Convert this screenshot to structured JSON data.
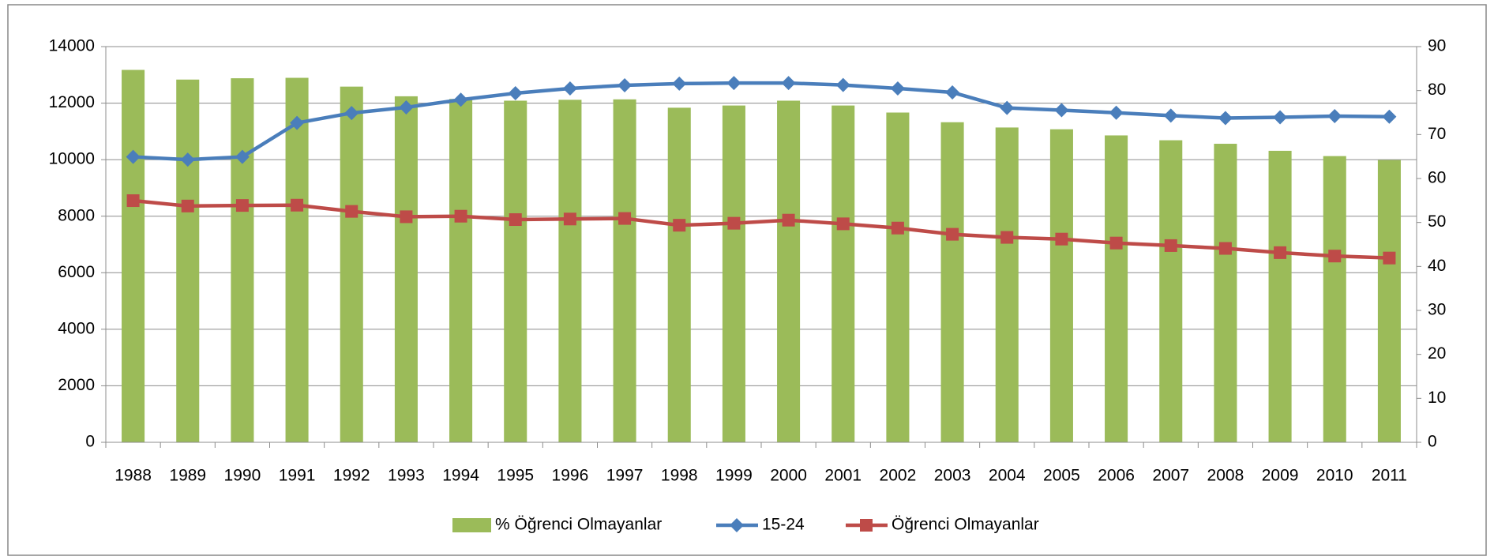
{
  "chart_data": {
    "type": "bar-line",
    "categories": [
      "1988",
      "1989",
      "1990",
      "1991",
      "1992",
      "1993",
      "1994",
      "1995",
      "1996",
      "1997",
      "1998",
      "1999",
      "2000",
      "2001",
      "2002",
      "2003",
      "2004",
      "2005",
      "2006",
      "2007",
      "2008",
      "2009",
      "2010",
      "2011"
    ],
    "series": [
      {
        "name": "% Öğrenci Olmayanlar",
        "type": "bar",
        "color": "#9bbb59",
        "axis": "y2",
        "values": [
          84.7,
          82.5,
          82.8,
          82.9,
          80.9,
          78.7,
          78.1,
          77.7,
          77.9,
          78.0,
          76.1,
          76.6,
          77.7,
          76.6,
          75.0,
          72.8,
          71.6,
          71.2,
          69.8,
          68.7,
          67.9,
          66.3,
          65.1,
          64.2
        ]
      },
      {
        "name": "15-24",
        "type": "line",
        "color": "#4a7ebb",
        "marker": "diamond",
        "values": [
          10100,
          10000,
          10100,
          11300,
          11650,
          11850,
          12120,
          12350,
          12520,
          12630,
          12690,
          12710,
          12710,
          12640,
          12520,
          12380,
          11830,
          11750,
          11660,
          11560,
          11470,
          11500,
          11540,
          11520
        ]
      },
      {
        "name": "Öğrenci Olmayanlar",
        "type": "line",
        "color": "#be4b48",
        "marker": "square",
        "values": [
          8550,
          8360,
          8380,
          8390,
          8170,
          7980,
          8000,
          7880,
          7900,
          7920,
          7680,
          7750,
          7860,
          7730,
          7580,
          7360,
          7250,
          7190,
          7050,
          6960,
          6860,
          6710,
          6590,
          6520
        ]
      }
    ],
    "ylim": [
      0,
      14000
    ],
    "yticks": [
      0,
      2000,
      4000,
      6000,
      8000,
      10000,
      12000,
      14000
    ],
    "y2lim": [
      0,
      90
    ],
    "y2ticks": [
      0,
      10,
      20,
      30,
      40,
      50,
      60,
      70,
      80,
      90
    ],
    "grid": true,
    "legend": "bottom"
  }
}
